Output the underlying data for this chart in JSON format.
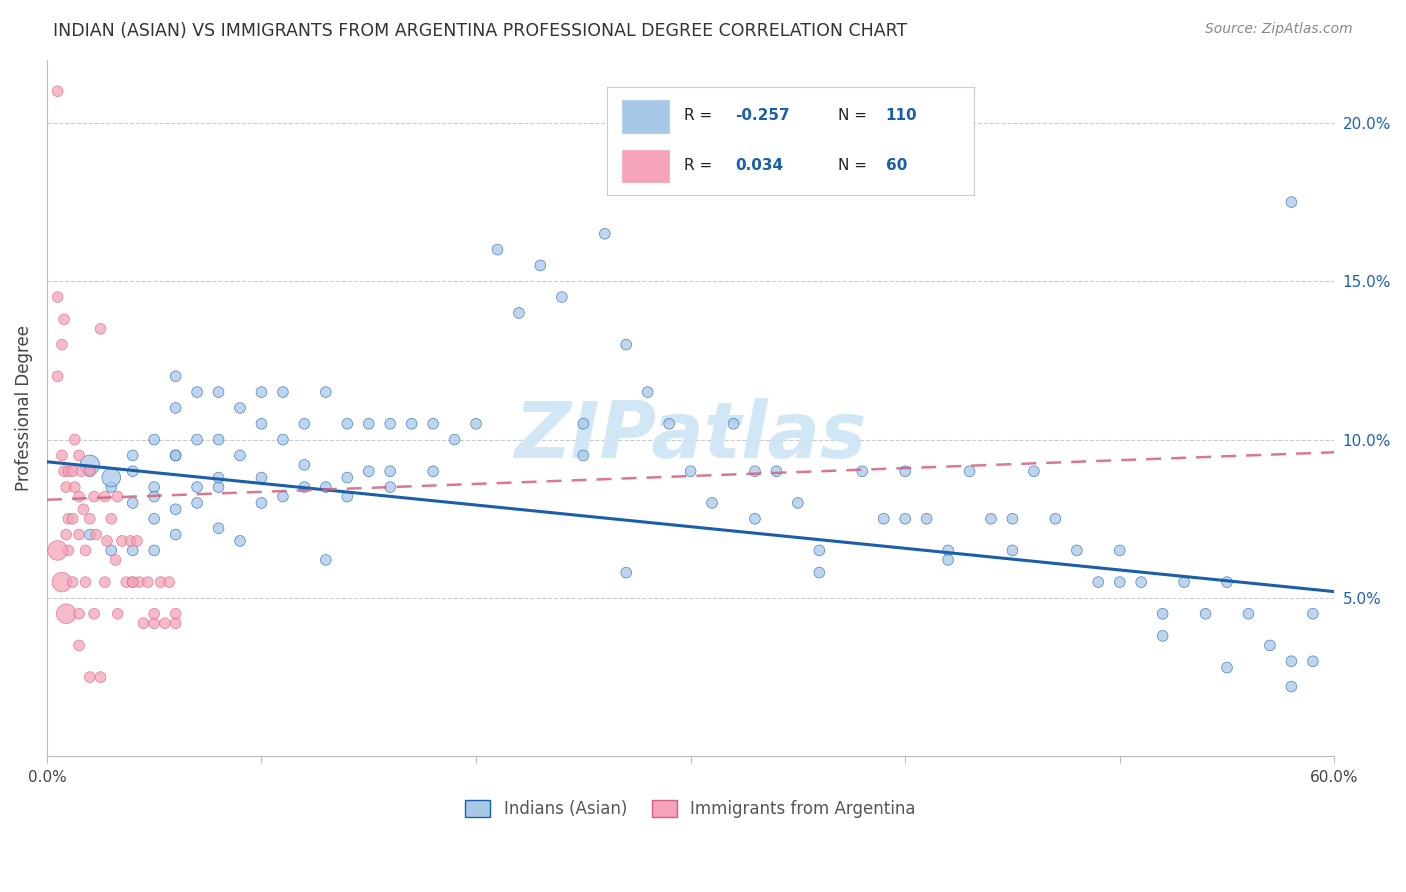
{
  "title": "INDIAN (ASIAN) VS IMMIGRANTS FROM ARGENTINA PROFESSIONAL DEGREE CORRELATION CHART",
  "source": "Source: ZipAtlas.com",
  "ylabel": "Professional Degree",
  "xlim": [
    0.0,
    0.6
  ],
  "ylim": [
    0.0,
    0.22
  ],
  "yticks": [
    0.05,
    0.1,
    0.15,
    0.2
  ],
  "ytick_labels": [
    "5.0%",
    "10.0%",
    "15.0%",
    "20.0%"
  ],
  "xticks": [
    0.0,
    0.1,
    0.2,
    0.3,
    0.4,
    0.5,
    0.6
  ],
  "xtick_labels": [
    "0.0%",
    "",
    "",
    "",
    "",
    "",
    "60.0%"
  ],
  "legend_r1": "-0.257",
  "legend_n1": "110",
  "legend_r2": "0.034",
  "legend_n2": "60",
  "color_blue": "#a8c8e8",
  "color_pink": "#f4a3b8",
  "color_blue_line": "#1a5fa8",
  "color_pink_line": "#d46080",
  "watermark": "ZIPatlas",
  "background_color": "#ffffff",
  "blue_x": [
    0.02,
    0.02,
    0.03,
    0.03,
    0.04,
    0.04,
    0.04,
    0.05,
    0.05,
    0.05,
    0.05,
    0.06,
    0.06,
    0.06,
    0.06,
    0.07,
    0.07,
    0.07,
    0.08,
    0.08,
    0.08,
    0.09,
    0.09,
    0.1,
    0.1,
    0.1,
    0.11,
    0.11,
    0.11,
    0.12,
    0.12,
    0.13,
    0.13,
    0.14,
    0.14,
    0.15,
    0.15,
    0.16,
    0.16,
    0.17,
    0.18,
    0.18,
    0.19,
    0.2,
    0.21,
    0.22,
    0.23,
    0.24,
    0.25,
    0.25,
    0.26,
    0.27,
    0.28,
    0.29,
    0.3,
    0.31,
    0.32,
    0.33,
    0.34,
    0.35,
    0.36,
    0.38,
    0.39,
    0.4,
    0.41,
    0.42,
    0.43,
    0.44,
    0.45,
    0.46,
    0.47,
    0.48,
    0.49,
    0.5,
    0.51,
    0.52,
    0.53,
    0.54,
    0.55,
    0.56,
    0.57,
    0.58,
    0.59,
    0.02,
    0.03,
    0.05,
    0.06,
    0.08,
    0.09,
    0.13,
    0.27,
    0.33,
    0.36,
    0.4,
    0.42,
    0.45,
    0.5,
    0.52,
    0.55,
    0.58,
    0.58,
    0.59,
    0.04,
    0.06,
    0.07,
    0.08,
    0.1,
    0.12,
    0.14,
    0.16
  ],
  "blue_y": [
    0.09,
    0.07,
    0.085,
    0.065,
    0.09,
    0.08,
    0.065,
    0.1,
    0.085,
    0.075,
    0.065,
    0.12,
    0.11,
    0.095,
    0.07,
    0.115,
    0.1,
    0.08,
    0.115,
    0.1,
    0.085,
    0.11,
    0.095,
    0.115,
    0.105,
    0.08,
    0.115,
    0.1,
    0.082,
    0.105,
    0.092,
    0.115,
    0.085,
    0.105,
    0.082,
    0.105,
    0.09,
    0.105,
    0.09,
    0.105,
    0.105,
    0.09,
    0.1,
    0.105,
    0.16,
    0.14,
    0.155,
    0.145,
    0.105,
    0.095,
    0.165,
    0.13,
    0.115,
    0.105,
    0.09,
    0.08,
    0.105,
    0.09,
    0.09,
    0.08,
    0.065,
    0.09,
    0.075,
    0.09,
    0.075,
    0.065,
    0.09,
    0.075,
    0.065,
    0.09,
    0.075,
    0.065,
    0.055,
    0.065,
    0.055,
    0.045,
    0.055,
    0.045,
    0.055,
    0.045,
    0.035,
    0.03,
    0.045,
    0.092,
    0.088,
    0.082,
    0.078,
    0.072,
    0.068,
    0.062,
    0.058,
    0.075,
    0.058,
    0.075,
    0.062,
    0.075,
    0.055,
    0.038,
    0.028,
    0.022,
    0.175,
    0.03,
    0.095,
    0.095,
    0.085,
    0.088,
    0.088,
    0.085,
    0.088,
    0.085
  ],
  "blue_s": [
    60,
    60,
    60,
    60,
    60,
    60,
    60,
    60,
    60,
    60,
    60,
    60,
    60,
    60,
    60,
    60,
    60,
    60,
    60,
    60,
    60,
    60,
    60,
    60,
    60,
    60,
    60,
    60,
    60,
    60,
    60,
    60,
    60,
    60,
    60,
    60,
    60,
    60,
    60,
    60,
    60,
    60,
    60,
    60,
    60,
    60,
    60,
    60,
    60,
    60,
    60,
    60,
    60,
    60,
    60,
    60,
    60,
    60,
    60,
    60,
    60,
    60,
    60,
    60,
    60,
    60,
    60,
    60,
    60,
    60,
    60,
    60,
    60,
    60,
    60,
    60,
    60,
    60,
    60,
    60,
    60,
    60,
    60,
    200,
    180,
    60,
    60,
    60,
    60,
    60,
    60,
    60,
    60,
    60,
    60,
    60,
    60,
    60,
    60,
    60,
    60,
    60,
    60,
    60,
    60,
    60,
    60,
    60,
    60,
    60
  ],
  "pink_x": [
    0.005,
    0.005,
    0.005,
    0.007,
    0.007,
    0.008,
    0.009,
    0.009,
    0.01,
    0.01,
    0.01,
    0.012,
    0.012,
    0.013,
    0.013,
    0.015,
    0.015,
    0.015,
    0.016,
    0.017,
    0.018,
    0.02,
    0.02,
    0.022,
    0.023,
    0.025,
    0.027,
    0.028,
    0.03,
    0.032,
    0.033,
    0.035,
    0.037,
    0.039,
    0.04,
    0.042,
    0.043,
    0.045,
    0.047,
    0.05,
    0.053,
    0.055,
    0.057,
    0.06,
    0.005,
    0.007,
    0.009,
    0.012,
    0.015,
    0.018,
    0.022,
    0.027,
    0.033,
    0.04,
    0.05,
    0.06,
    0.015,
    0.02,
    0.025,
    0.008
  ],
  "pink_y": [
    0.21,
    0.145,
    0.12,
    0.13,
    0.095,
    0.09,
    0.085,
    0.07,
    0.09,
    0.075,
    0.065,
    0.09,
    0.075,
    0.1,
    0.085,
    0.095,
    0.082,
    0.07,
    0.09,
    0.078,
    0.065,
    0.09,
    0.075,
    0.082,
    0.07,
    0.135,
    0.082,
    0.068,
    0.075,
    0.062,
    0.082,
    0.068,
    0.055,
    0.068,
    0.055,
    0.068,
    0.055,
    0.042,
    0.055,
    0.042,
    0.055,
    0.042,
    0.055,
    0.042,
    0.065,
    0.055,
    0.045,
    0.055,
    0.045,
    0.055,
    0.045,
    0.055,
    0.045,
    0.055,
    0.045,
    0.045,
    0.035,
    0.025,
    0.025,
    0.138
  ],
  "pink_s": [
    60,
    60,
    60,
    60,
    60,
    60,
    60,
    60,
    60,
    60,
    60,
    60,
    60,
    60,
    60,
    60,
    60,
    60,
    60,
    60,
    60,
    60,
    60,
    60,
    60,
    60,
    60,
    60,
    60,
    60,
    60,
    60,
    60,
    60,
    60,
    60,
    60,
    60,
    60,
    60,
    60,
    60,
    60,
    60,
    200,
    200,
    200,
    60,
    60,
    60,
    60,
    60,
    60,
    60,
    60,
    60,
    60,
    60,
    60,
    60
  ],
  "blue_trend": [
    0.093,
    0.052
  ],
  "pink_trend": [
    0.081,
    0.096
  ]
}
